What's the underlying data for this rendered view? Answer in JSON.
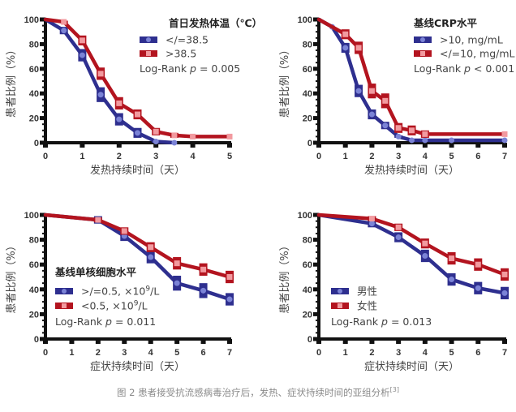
{
  "colors": {
    "blue_line": "#2e2f8f",
    "blue_marker": "#7b83d6",
    "red_line": "#b3141f",
    "red_marker": "#f29a9f",
    "axis": "#111111"
  },
  "caption": {
    "text": "图 2 患者接受抗流感病毒治疗后，发热、症状持续时间的亚组分析",
    "ref": "[3]"
  },
  "chart_data": [
    {
      "type": "line",
      "id": "fever-temp",
      "title": "首日发热体温（℃）",
      "xlabel": "发热持续时间（天）",
      "ylabel": "患者比例（%）",
      "xlim": [
        0,
        5
      ],
      "ylim": [
        0,
        100
      ],
      "xticks": [
        0,
        1,
        2,
        3,
        4,
        5
      ],
      "yticks": [
        0,
        20,
        40,
        60,
        80,
        100
      ],
      "legend_position": "top-right",
      "annotation": "Log-Rank p = 0.005",
      "annotation_parts": {
        "prefix": "Log-Rank ",
        "p": "p",
        "suffix": " = 0.005"
      },
      "series": [
        {
          "name": "</=38.5",
          "color": "blue",
          "x": [
            0,
            0.5,
            1,
            1.5,
            2,
            2.5,
            3,
            3.5
          ],
          "y": [
            100,
            91,
            71,
            39,
            19,
            8,
            1,
            0
          ],
          "err": [
            0,
            3,
            5,
            6,
            5,
            4,
            1,
            0
          ]
        },
        {
          "name": ">38.5",
          "color": "red",
          "x": [
            0,
            0.5,
            1,
            1.5,
            2,
            2.5,
            3,
            3.5,
            4,
            5
          ],
          "y": [
            100,
            98,
            83,
            56,
            32,
            23,
            9,
            6,
            5,
            5
          ],
          "err": [
            0,
            1,
            4,
            5,
            5,
            4,
            3,
            2,
            0,
            0
          ]
        }
      ]
    },
    {
      "type": "line",
      "id": "crp",
      "title": "基线CRP水平",
      "xlabel": "发热持续时间（天）",
      "ylabel": "患者比例（%）",
      "xlim": [
        0,
        7
      ],
      "ylim": [
        0,
        100
      ],
      "xticks": [
        0,
        1,
        2,
        3,
        4,
        5,
        6,
        7
      ],
      "yticks": [
        0,
        20,
        40,
        60,
        80,
        100
      ],
      "legend_position": "top-right",
      "annotation": "Log-Rank p < 0.001",
      "annotation_parts": {
        "prefix": "Log-Rank ",
        "p": "p",
        "suffix": " < 0.001"
      },
      "series": [
        {
          "name": ">10, mg/mL",
          "color": "blue",
          "x": [
            0,
            0.5,
            1,
            1.5,
            2,
            2.5,
            3,
            3.5,
            4,
            5,
            7
          ],
          "y": [
            100,
            94,
            77,
            42,
            23,
            14,
            5,
            2,
            2,
            2,
            2
          ],
          "err": [
            0,
            0,
            4,
            5,
            4,
            3,
            1,
            0,
            0,
            0,
            0
          ]
        },
        {
          "name": "</=10, mg/mL",
          "color": "red",
          "x": [
            0,
            1,
            1.5,
            2,
            2.5,
            3,
            3.5,
            4,
            7
          ],
          "y": [
            100,
            88,
            77,
            42,
            34,
            12,
            10,
            7,
            7
          ],
          "err": [
            0,
            4,
            5,
            6,
            6,
            4,
            4,
            3,
            0
          ]
        }
      ]
    },
    {
      "type": "line",
      "id": "monocyte",
      "title": "基线单核细胞水平",
      "xlabel": "症状持续时间（天）",
      "ylabel": "患者比例（%）",
      "xlim": [
        0,
        7
      ],
      "ylim": [
        0,
        100
      ],
      "xticks": [
        0,
        1,
        2,
        3,
        4,
        5,
        6,
        7
      ],
      "yticks": [
        0,
        20,
        40,
        60,
        80,
        100
      ],
      "legend_position": "center-left",
      "annotation": "Log-Rank p = 0.011",
      "annotation_parts": {
        "prefix": "Log-Rank ",
        "p": "p",
        "suffix": " = 0.011"
      },
      "series": [
        {
          "name": ">/=0.5, ×10^9/L",
          "label_base": ">/=0.5, ×10",
          "label_sup": "9",
          "label_tail": "/L",
          "color": "blue",
          "x": [
            0,
            2,
            3,
            4,
            5,
            6,
            7
          ],
          "y": [
            100,
            96,
            83,
            66,
            45,
            39,
            32
          ],
          "err": [
            0,
            3,
            4,
            5,
            6,
            6,
            5
          ]
        },
        {
          "name": "<0.5, ×10^9/L",
          "label_base": "<0.5, ×10",
          "label_sup": "9",
          "label_tail": "/L",
          "color": "red",
          "x": [
            0,
            2,
            3,
            4,
            5,
            6,
            7
          ],
          "y": [
            100,
            96,
            87,
            74,
            61,
            56,
            50
          ],
          "err": [
            0,
            2,
            3,
            4,
            5,
            5,
            5
          ]
        }
      ]
    },
    {
      "type": "line",
      "id": "sex",
      "title": "",
      "xlabel": "症状持续时间（天）",
      "ylabel": "患者比例（%）",
      "xlim": [
        0,
        7
      ],
      "ylim": [
        0,
        100
      ],
      "xticks": [
        0,
        1,
        2,
        3,
        4,
        5,
        6,
        7
      ],
      "yticks": [
        0,
        20,
        40,
        60,
        80,
        100
      ],
      "legend_position": "center-left",
      "annotation": "Log-Rank p = 0.013",
      "annotation_parts": {
        "prefix": "Log-Rank ",
        "p": "p",
        "suffix": " = 0.013"
      },
      "series": [
        {
          "name": "男性",
          "color": "blue",
          "x": [
            0,
            2,
            3,
            4,
            5,
            6,
            7
          ],
          "y": [
            100,
            93,
            82,
            67,
            48,
            41,
            37
          ],
          "err": [
            0,
            3,
            4,
            5,
            5,
            5,
            5
          ]
        },
        {
          "name": "女性",
          "color": "red",
          "x": [
            0,
            2,
            3,
            4,
            5,
            6,
            7
          ],
          "y": [
            100,
            97,
            90,
            77,
            65,
            60,
            52
          ],
          "err": [
            0,
            2,
            3,
            4,
            5,
            5,
            5
          ]
        }
      ]
    }
  ]
}
